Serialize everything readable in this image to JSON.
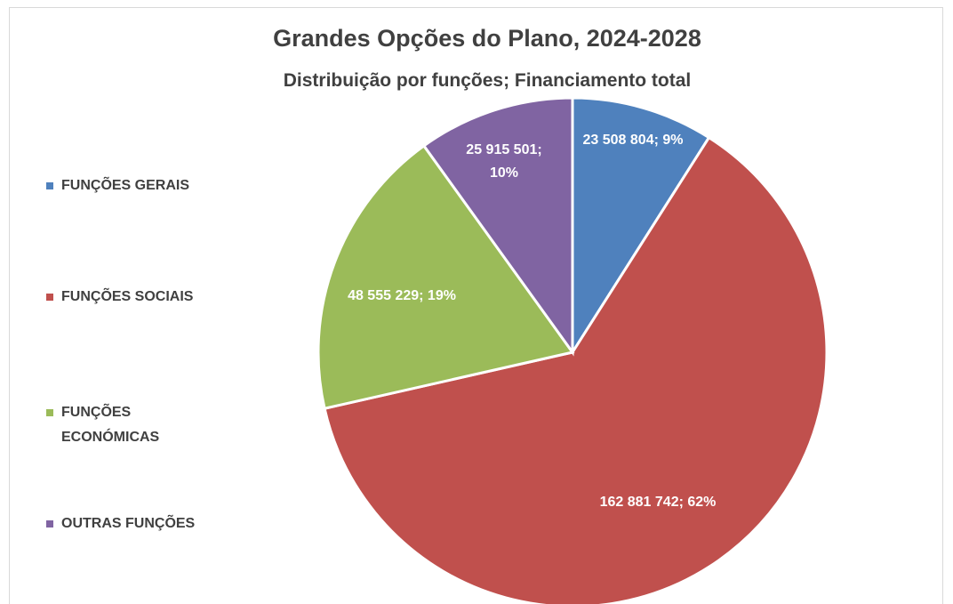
{
  "chart_data": {
    "type": "pie",
    "title": "Grandes Opções do Plano, 2024-2028",
    "subtitle": "Distribuição por funções; Financiamento total",
    "categories": [
      "FUNÇÕES GERAIS",
      "FUNÇÕES SOCIAIS",
      "FUNÇÕES ECONÓMICAS",
      "OUTRAS FUNÇÕES"
    ],
    "values": [
      23508804,
      162881742,
      48555229,
      25915501
    ],
    "value_labels": [
      "23 508 804; 9%",
      "162 881 742; 62%",
      "48 555 229; 19%",
      "25 915 501; 10%"
    ],
    "colors": [
      "#4f81bd",
      "#c0504d",
      "#9bbb59",
      "#8064a2"
    ],
    "legend": "left"
  }
}
